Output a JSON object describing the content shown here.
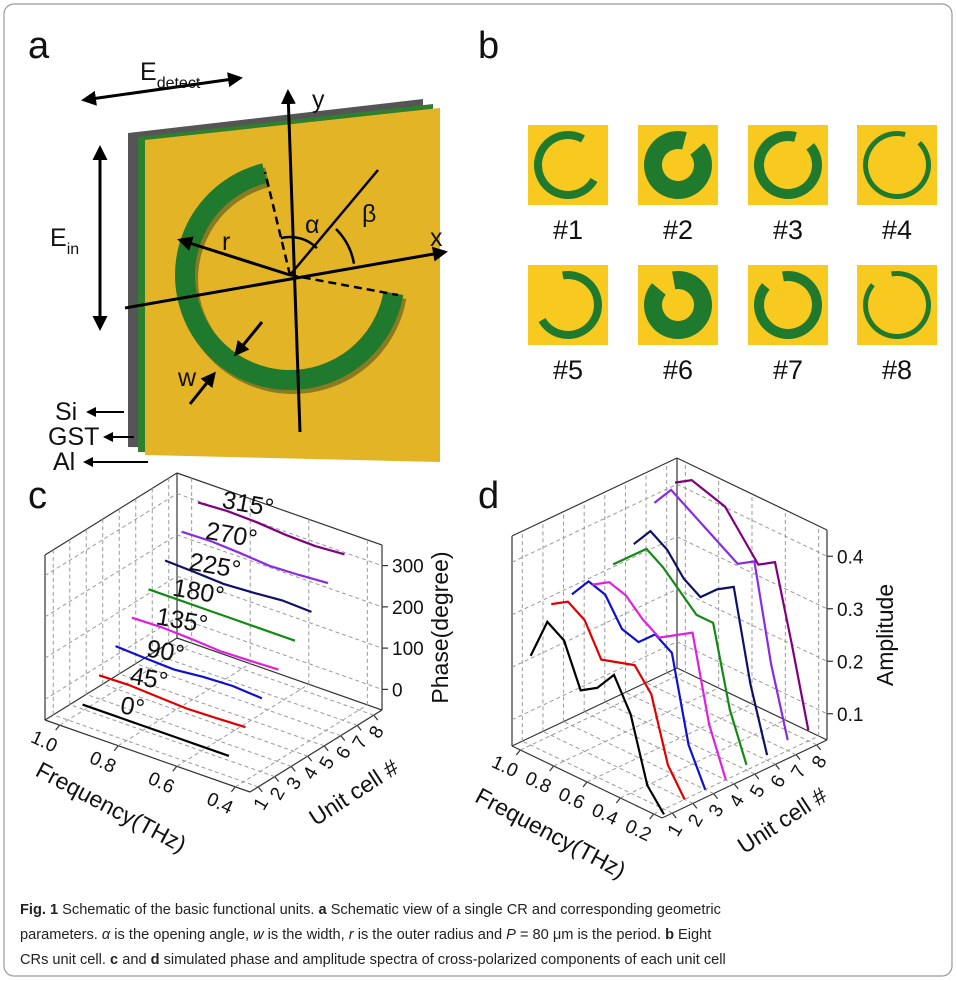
{
  "panels": {
    "a": {
      "label": "a",
      "e_detect": {
        "main": "E",
        "sub": "detect"
      },
      "e_in": {
        "main": "E",
        "sub": "in"
      },
      "y": "y",
      "x": "x",
      "r": "r",
      "alpha": "α",
      "beta": "β",
      "w": "w",
      "layers": [
        "Si",
        "GST",
        "Al"
      ]
    },
    "b": {
      "label": "b",
      "cells": [
        "#1",
        "#2",
        "#3",
        "#4",
        "#5",
        "#6",
        "#7",
        "#8"
      ]
    },
    "c": {
      "label": "c"
    },
    "d": {
      "label": "d"
    }
  },
  "chart_data": [
    {
      "type": "line3d",
      "x": [
        0.45,
        0.55,
        0.65,
        0.75,
        0.85,
        0.95
      ],
      "xlim": [
        0.35,
        1.05
      ],
      "xticks": [
        0.4,
        0.6,
        0.8,
        {
          "value": 1,
          "label": "1.0"
        }
      ],
      "xlabel": "Frequency(THz)",
      "zlim": [
        0.5,
        8.5
      ],
      "zticks": [
        1,
        2,
        3,
        4,
        5,
        6,
        7,
        8
      ],
      "zlabel": "Unit cell #",
      "ylim": [
        -50,
        350
      ],
      "yticks": [
        0,
        100,
        200,
        300
      ],
      "ylabel": "Phase(degree)",
      "grid": true,
      "series": [
        {
          "z": 1,
          "label": "0°",
          "color": "#000000",
          "values": [
            0,
            0,
            0,
            0,
            0,
            0
          ]
        },
        {
          "z": 2,
          "label": "45°",
          "color": "#e00000",
          "values": [
            45,
            42,
            40,
            44,
            48,
            46
          ]
        },
        {
          "z": 3,
          "label": "90°",
          "color": "#1010d0",
          "values": [
            90,
            95,
            92,
            85,
            88,
            92
          ]
        },
        {
          "z": 4,
          "label": "135°",
          "color": "#e020e0",
          "values": [
            135,
            132,
            130,
            135,
            138,
            136
          ]
        },
        {
          "z": 5,
          "label": "180°",
          "color": "#138a13",
          "values": [
            180,
            180,
            180,
            180,
            180,
            180
          ]
        },
        {
          "z": 6,
          "label": "225°",
          "color": "#10106a",
          "values": [
            225,
            228,
            222,
            218,
            222,
            225
          ]
        },
        {
          "z": 7,
          "label": "270°",
          "color": "#8a2be2",
          "values": [
            270,
            265,
            262,
            268,
            272,
            270
          ]
        },
        {
          "z": 8,
          "label": "315°",
          "color": "#800080",
          "values": [
            315,
            310,
            312,
            318,
            320,
            316
          ]
        }
      ]
    },
    {
      "type": "line3d",
      "x": [
        0.2,
        0.3,
        0.4,
        0.5,
        0.6,
        0.7,
        0.8,
        0.9,
        1.0
      ],
      "xlim": [
        0.15,
        1.05
      ],
      "xticks": [
        0.2,
        0.4,
        0.6,
        0.8,
        {
          "value": 1,
          "label": "1.0"
        }
      ],
      "xlabel": "Frequency(THz)",
      "zlim": [
        0.5,
        8.5
      ],
      "zticks": [
        1,
        2,
        3,
        4,
        5,
        6,
        7,
        8
      ],
      "zlabel": "Unit cell #",
      "ylim": [
        0.05,
        0.45
      ],
      "yticks": [
        0.1,
        0.2,
        0.3,
        0.4
      ],
      "ylabel": "Amplitude",
      "grid": true,
      "series": [
        {
          "z": 1,
          "color": "#000000",
          "values": [
            0.04,
            0.08,
            0.2,
            0.26,
            0.22,
            0.2,
            0.28,
            0.3,
            0.22
          ]
        },
        {
          "z": 2,
          "color": "#e00000",
          "values": [
            0.05,
            0.1,
            0.22,
            0.26,
            0.25,
            0.24,
            0.3,
            0.32,
            0.3
          ]
        },
        {
          "z": 3,
          "color": "#1010d0",
          "values": [
            0.05,
            0.12,
            0.28,
            0.3,
            0.27,
            0.28,
            0.33,
            0.34,
            0.3
          ]
        },
        {
          "z": 4,
          "color": "#e020e0",
          "values": [
            0.05,
            0.14,
            0.3,
            0.28,
            0.26,
            0.28,
            0.31,
            0.32,
            0.3
          ]
        },
        {
          "z": 5,
          "color": "#138a13",
          "values": [
            0.06,
            0.15,
            0.3,
            0.3,
            0.33,
            0.36,
            0.38,
            0.35,
            0.32
          ]
        },
        {
          "z": 6,
          "color": "#10106a",
          "values": [
            0.06,
            0.18,
            0.35,
            0.33,
            0.3,
            0.32,
            0.36,
            0.38,
            0.34
          ]
        },
        {
          "z": 7,
          "color": "#8a2be2",
          "values": [
            0.07,
            0.2,
            0.38,
            0.36,
            0.38,
            0.4,
            0.42,
            0.44,
            0.4
          ]
        },
        {
          "z": 8,
          "color": "#800080",
          "values": [
            0.07,
            0.22,
            0.36,
            0.34,
            0.38,
            0.42,
            0.43,
            0.44,
            0.42
          ]
        }
      ]
    }
  ],
  "caption": {
    "lines": [
      [
        "Fig. 1",
        " Schematic of the basic functional units. ",
        "a",
        " Schematic view of a single CR and corresponding geometric"
      ],
      [
        "parameters. ",
        "α",
        " is the opening angle, ",
        "w",
        " is the width, ",
        "r",
        " is the outer radius and ",
        "P",
        " = 80 μm is the period. ",
        "b",
        " Eight"
      ],
      [
        "CRs unit cell. ",
        "c",
        " and ",
        "d",
        " simulated phase and amplitude spectra of cross-polarized components of each unit cell"
      ]
    ]
  }
}
